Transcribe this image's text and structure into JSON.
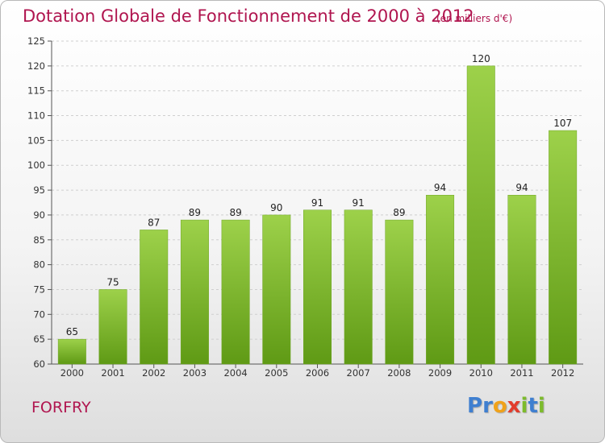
{
  "chart_data": {
    "type": "bar",
    "title": "Dotation Globale de Fonctionnement de 2000 à 2012",
    "subtitle": "(en milliers d'€)",
    "categories": [
      "2000",
      "2001",
      "2002",
      "2003",
      "2004",
      "2005",
      "2006",
      "2007",
      "2008",
      "2009",
      "2010",
      "2011",
      "2012"
    ],
    "values": [
      65,
      75,
      87,
      89,
      89,
      90,
      91,
      91,
      89,
      94,
      120,
      94,
      107
    ],
    "ylim": [
      60,
      125
    ],
    "yticks": [
      60,
      65,
      70,
      75,
      80,
      85,
      90,
      95,
      100,
      105,
      110,
      115,
      120,
      125
    ],
    "grid": true,
    "bar_color_top": "#9dd14a",
    "bar_color_bottom": "#5f9a15"
  },
  "footer": {
    "commune": "FORFRY",
    "logo_letters": [
      {
        "ch": "P",
        "color": "#3f7fd0"
      },
      {
        "ch": "r",
        "color": "#3f7fd0"
      },
      {
        "ch": "o",
        "color": "#f0a21a"
      },
      {
        "ch": "x",
        "color": "#e23c2c"
      },
      {
        "ch": "i",
        "color": "#7dbb2c"
      },
      {
        "ch": "t",
        "color": "#3f7fd0"
      },
      {
        "ch": "i",
        "color": "#7dbb2c"
      }
    ]
  }
}
